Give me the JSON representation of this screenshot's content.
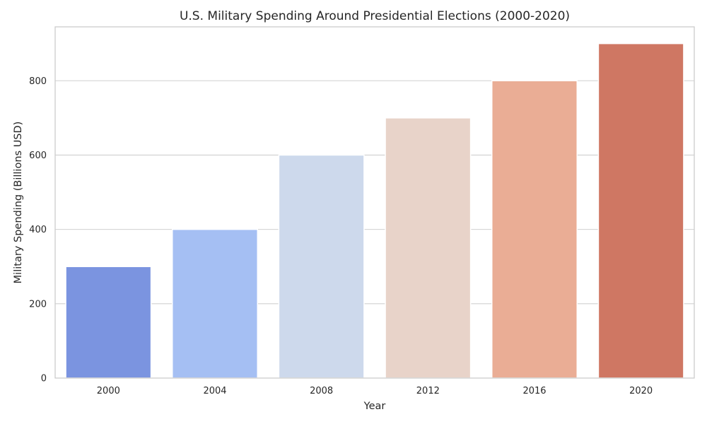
{
  "chart_data": {
    "type": "bar",
    "title": "U.S. Military Spending Around Presidential Elections (2000-2020)",
    "xlabel": "Year",
    "ylabel": "Military Spending (Billions USD)",
    "categories": [
      "2000",
      "2004",
      "2008",
      "2012",
      "2016",
      "2020"
    ],
    "values": [
      300,
      400,
      600,
      700,
      800,
      900
    ],
    "ylim": [
      0,
      945
    ],
    "yticks": [
      0,
      200,
      400,
      600,
      800
    ],
    "grid": true,
    "colors": [
      "#7b94e0",
      "#a5bff3",
      "#cdd9ec",
      "#e8d3c9",
      "#eaad95",
      "#cf7763"
    ],
    "style": {
      "background": "#ffffff",
      "grid_color": "#d0d0d0",
      "spine_color": "#cccccc",
      "bar_edge": "#ffffff"
    }
  }
}
